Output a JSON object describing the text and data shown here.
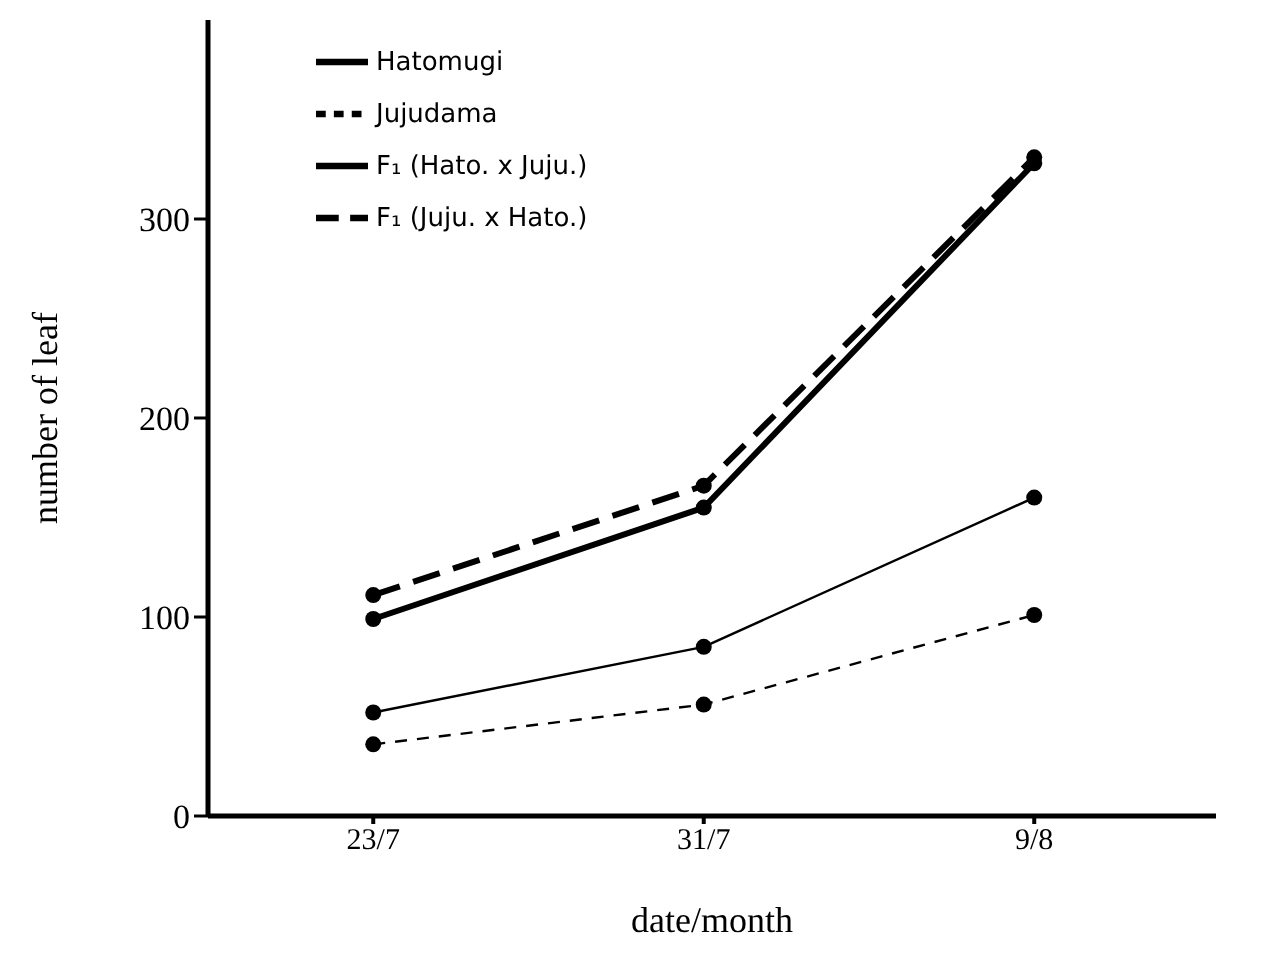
{
  "chart_data": {
    "type": "line",
    "xlabel": "date/month",
    "ylabel": "number of leaf",
    "categories": [
      "23/7",
      "31/7",
      "9/8"
    ],
    "series": [
      {
        "name": "Hatomugi",
        "color": "#000000",
        "line_style": "solid",
        "values": [
          52,
          85,
          160
        ]
      },
      {
        "name": "Jujudama",
        "color": "#000000",
        "line_style": "dashed",
        "values": [
          36,
          56,
          101
        ]
      },
      {
        "name": "F₁ (Hato. x Juju.)",
        "color": "#000000",
        "line_style": "solid",
        "values": [
          99,
          155,
          328
        ]
      },
      {
        "name": "F₁ (Juju. x Hato.)",
        "color": "#000000",
        "line_style": "dashed",
        "values": [
          111,
          166,
          331
        ]
      }
    ],
    "ylim": [
      0,
      400
    ],
    "yticks": [
      0,
      100,
      200,
      300
    ],
    "marker": "circle",
    "legend": "top left",
    "grid": false
  }
}
